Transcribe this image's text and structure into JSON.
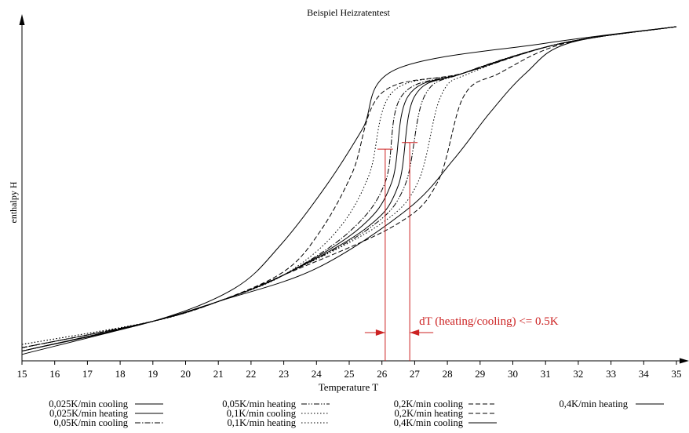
{
  "chart_data": {
    "type": "line",
    "title": "Beispiel Heizratentest",
    "xlabel": "Temperature T",
    "ylabel": "enthalpy H",
    "xlim": [
      15,
      35
    ],
    "ylim": [
      0,
      1
    ],
    "grid": false,
    "x_ticks": [
      "15",
      "16",
      "17",
      "18",
      "19",
      "20",
      "21",
      "22",
      "23",
      "24",
      "25",
      "26",
      "27",
      "28",
      "29",
      "30",
      "31",
      "32",
      "33",
      "34",
      "35"
    ],
    "legend_position": "bottom",
    "series": [
      {
        "name": "0,025K/min cooling",
        "dash": "solid",
        "x": [
          15,
          19,
          21,
          23,
          25.5,
          26.5,
          27,
          28.5,
          31.5,
          35
        ],
        "y": [
          0.02,
          0.11,
          0.17,
          0.25,
          0.39,
          0.52,
          0.79,
          0.86,
          0.95,
          1.0
        ]
      },
      {
        "name": "0,025K/min heating",
        "dash": "solid",
        "x": [
          15,
          19,
          21,
          23,
          25.3,
          26.3,
          26.8,
          28.5,
          31.5,
          35
        ],
        "y": [
          0.02,
          0.11,
          0.17,
          0.25,
          0.39,
          0.53,
          0.79,
          0.86,
          0.95,
          1.0
        ]
      },
      {
        "name": "0,05K/min cooling",
        "dash": "dashdot",
        "x": [
          15,
          19,
          21,
          23,
          25,
          26.1,
          26.6,
          28.5,
          31.5,
          35
        ],
        "y": [
          0.03,
          0.11,
          0.17,
          0.25,
          0.38,
          0.53,
          0.79,
          0.86,
          0.95,
          1.0
        ]
      },
      {
        "name": "0,05K/min heating",
        "dash": "dashdotdot",
        "x": [
          15,
          19,
          21,
          23,
          25.6,
          26.7,
          27.3,
          28.5,
          31.5,
          35
        ],
        "y": [
          0.03,
          0.11,
          0.17,
          0.25,
          0.39,
          0.52,
          0.79,
          0.86,
          0.95,
          1.0
        ]
      },
      {
        "name": "0,1K/min cooling",
        "dash": "dotted",
        "x": [
          15,
          19,
          21,
          23,
          24.6,
          25.6,
          26.3,
          28.5,
          31.5,
          35
        ],
        "y": [
          0.04,
          0.11,
          0.17,
          0.25,
          0.38,
          0.55,
          0.8,
          0.86,
          0.95,
          1.0
        ]
      },
      {
        "name": "0,1K/min heating",
        "dash": "dotted",
        "x": [
          15,
          19,
          21,
          23,
          25.9,
          27.1,
          27.8,
          28.7,
          31.5,
          35
        ],
        "y": [
          0.04,
          0.11,
          0.17,
          0.25,
          0.4,
          0.53,
          0.79,
          0.86,
          0.95,
          1.0
        ]
      },
      {
        "name": "0,2K/min cooling",
        "dash": "dashed",
        "x": [
          15,
          19,
          21,
          23,
          24.1,
          25.1,
          26,
          28.5,
          31.5,
          35
        ],
        "y": [
          0.03,
          0.11,
          0.17,
          0.26,
          0.38,
          0.56,
          0.8,
          0.86,
          0.95,
          1.0
        ]
      },
      {
        "name": "0,2K/min heating",
        "dash": "dashed",
        "x": [
          15,
          19,
          21,
          23,
          26.4,
          27.7,
          28.5,
          29.6,
          31.6,
          35
        ],
        "y": [
          0.03,
          0.11,
          0.17,
          0.25,
          0.4,
          0.53,
          0.79,
          0.86,
          0.95,
          1.0
        ]
      },
      {
        "name": "0,4K/min cooling",
        "dash": "solid",
        "x": [
          15,
          19,
          21.5,
          22.9,
          24.3,
          25.4,
          26.4,
          31,
          35
        ],
        "y": [
          0.02,
          0.11,
          0.21,
          0.34,
          0.52,
          0.69,
          0.87,
          0.95,
          1.0
        ]
      },
      {
        "name": "0,4K/min heating",
        "dash": "solid",
        "x": [
          15,
          19,
          21,
          24,
          26.8,
          28.2,
          29.3,
          30.4,
          31.7,
          35
        ],
        "y": [
          0.01,
          0.11,
          0.17,
          0.27,
          0.45,
          0.6,
          0.74,
          0.86,
          0.95,
          1.0
        ]
      }
    ],
    "annotations": [
      {
        "text": "dT (heating/cooling) <= 0.5K",
        "color": "#cc2222",
        "x1": 26.1,
        "x2": 26.85,
        "y_top1": 0.63,
        "y_top2": 0.65
      }
    ]
  }
}
